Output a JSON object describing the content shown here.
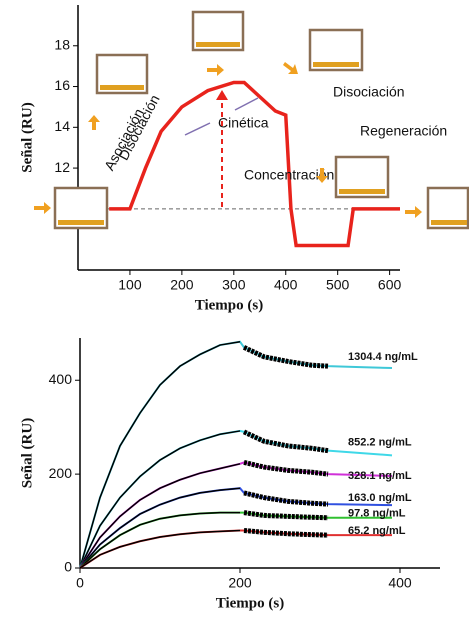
{
  "chart_data": [
    {
      "type": "line",
      "xlabel": "Tiempo (s)",
      "ylabel": "Señal (RU)",
      "x": [
        60,
        100,
        130,
        160,
        200,
        250,
        300,
        320,
        350,
        380,
        400,
        410,
        420,
        500,
        520,
        530,
        620
      ],
      "series": [
        {
          "color": "#e8231c",
          "values": [
            10,
            10,
            12,
            13.8,
            15,
            15.8,
            16.2,
            16.2,
            15.5,
            14.8,
            14.6,
            10,
            8.2,
            8.2,
            8.2,
            10,
            10
          ]
        }
      ],
      "xlim": [
        0,
        620
      ],
      "ylim": [
        7,
        20
      ],
      "xticks": [
        100,
        200,
        300,
        400,
        500,
        600
      ],
      "yticks": [
        12,
        14,
        16,
        18
      ],
      "annotations": [
        "Asociación",
        "Disociación",
        "Cinética",
        "Disociación",
        "Regeneración",
        "Concentración"
      ]
    },
    {
      "type": "line",
      "xlabel": "Tiempo (s)",
      "ylabel": "Señal (RU)",
      "x": [
        0,
        25,
        50,
        75,
        100,
        125,
        150,
        175,
        200,
        205,
        230,
        260,
        290,
        310,
        350,
        390
      ],
      "series": [
        {
          "name": "1304.4 ng/mL",
          "color": "#3fc8d8",
          "values": [
            0,
            150,
            260,
            330,
            390,
            430,
            455,
            475,
            482,
            470,
            450,
            440,
            432,
            430,
            428,
            426
          ]
        },
        {
          "name": "852.2 ng/mL",
          "color": "#3fd8e8",
          "values": [
            0,
            90,
            150,
            195,
            230,
            255,
            272,
            285,
            292,
            290,
            270,
            260,
            255,
            250,
            245,
            240
          ]
        },
        {
          "name": "328.1 ng/mL",
          "color": "#d030d8",
          "values": [
            0,
            65,
            110,
            145,
            170,
            188,
            202,
            212,
            222,
            225,
            215,
            208,
            204,
            200,
            198,
            196
          ]
        },
        {
          "name": "163.0 ng/mL",
          "color": "#3050e0",
          "values": [
            0,
            50,
            85,
            115,
            135,
            150,
            160,
            166,
            170,
            160,
            150,
            142,
            138,
            136,
            135,
            134
          ]
        },
        {
          "name": "97.8 ng/mL",
          "color": "#30c030",
          "values": [
            0,
            40,
            70,
            92,
            105,
            112,
            116,
            118,
            118,
            118,
            112,
            110,
            108,
            107,
            107,
            107
          ]
        },
        {
          "name": "65.2 ng/mL",
          "color": "#e03030",
          "values": [
            0,
            28,
            45,
            57,
            66,
            72,
            76,
            78,
            80,
            80,
            76,
            73,
            71,
            70,
            70,
            70
          ]
        }
      ],
      "xlim": [
        0,
        450
      ],
      "ylim": [
        0,
        490
      ],
      "xticks": [
        0,
        200,
        400
      ],
      "yticks": [
        0,
        200,
        400
      ]
    }
  ]
}
